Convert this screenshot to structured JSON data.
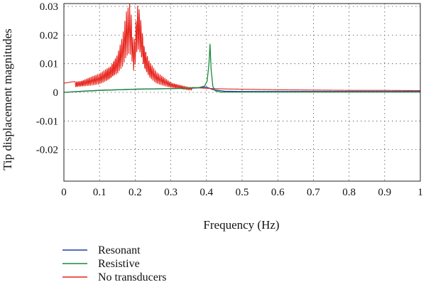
{
  "chart_data": {
    "type": "line",
    "title": "",
    "xlabel": "Frequency (Hz)",
    "ylabel": "Tip displacement magnitudes",
    "xlim": [
      0,
      1
    ],
    "ylim": [
      -0.031,
      0.031
    ],
    "grid": true,
    "legend_position": "bottom-left",
    "x_ticks": [
      "0",
      "0.1",
      "0.2",
      "0.3",
      "0.4",
      "0.5",
      "0.6",
      "0.7",
      "0.8",
      "0.9",
      "1"
    ],
    "x_tick_values": [
      0,
      0.1,
      0.2,
      0.3,
      0.4,
      0.5,
      0.6,
      0.7,
      0.8,
      0.9,
      1
    ],
    "y_ticks": [
      "0.03",
      "0.02",
      "0.01",
      "0",
      "-0.01",
      "-0.02"
    ],
    "y_tick_values": [
      0.03,
      0.02,
      0.01,
      0,
      -0.01,
      -0.02
    ],
    "series": [
      {
        "name": "Resonant",
        "color": "#1f3fa8",
        "x": [
          0,
          0.1,
          0.2,
          0.3,
          0.35,
          0.38,
          0.4,
          0.42,
          0.45,
          0.5,
          0.6,
          0.8,
          1.0
        ],
        "y": [
          0.0,
          0.0007,
          0.0011,
          0.0013,
          0.0014,
          0.0016,
          0.0018,
          0.0009,
          0.0004,
          0.0003,
          0.0003,
          0.0003,
          0.0003
        ]
      },
      {
        "name": "Resistive",
        "color": "#1a8a3c",
        "x": [
          0,
          0.05,
          0.1,
          0.15,
          0.2,
          0.25,
          0.3,
          0.35,
          0.38,
          0.395,
          0.402,
          0.407,
          0.41,
          0.413,
          0.418,
          0.425,
          0.44,
          0.47,
          0.5,
          0.6,
          0.8,
          1.0
        ],
        "y": [
          0.0,
          0.0004,
          0.0007,
          0.0009,
          0.0011,
          0.0012,
          0.0013,
          0.0015,
          0.0017,
          0.0022,
          0.004,
          0.01,
          0.0168,
          0.008,
          0.002,
          0.0005,
          0.0001,
          0.0001,
          0.0001,
          0.0001,
          0.0001,
          0.0001
        ]
      },
      {
        "name": "No transducers",
        "color": "#e8231b",
        "x": [
          0,
          0.05,
          0.1,
          0.13,
          0.15,
          0.165,
          0.175,
          0.185,
          0.19,
          0.195,
          0.2,
          0.205,
          0.21,
          0.215,
          0.225,
          0.24,
          0.26,
          0.3,
          0.35,
          0.4,
          0.45,
          0.5,
          0.6,
          0.7,
          0.8,
          0.9,
          1.0
        ],
        "y": [
          0.0032,
          0.0042,
          0.0065,
          0.0095,
          0.0135,
          0.02,
          0.028,
          0.031,
          0.026,
          0.016,
          0.021,
          0.031,
          0.031,
          0.027,
          0.017,
          0.011,
          0.007,
          0.0035,
          0.0018,
          0.0014,
          0.0012,
          0.0011,
          0.0009,
          0.0008,
          0.0007,
          0.0007,
          0.0006
        ]
      }
    ]
  }
}
